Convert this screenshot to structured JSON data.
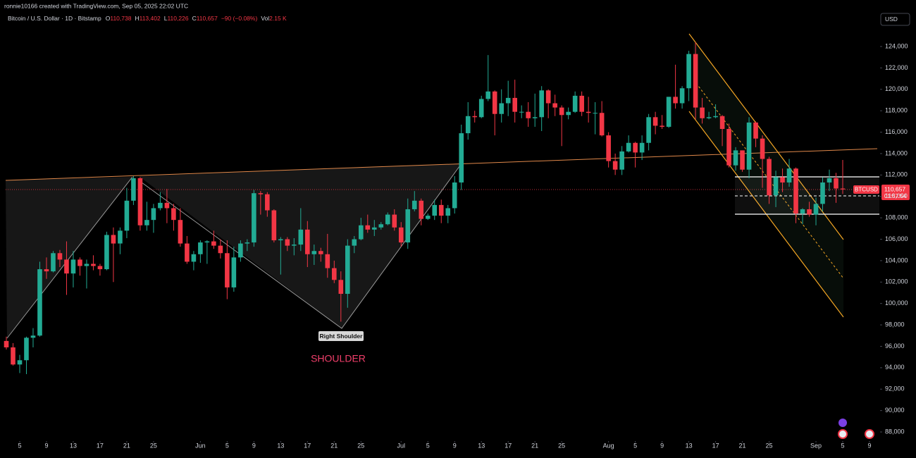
{
  "header": {
    "credit": "ronnie10166 created with TradingView.com, Sep 05, 2025 22:02 UTC",
    "symbol": "Bitcoin / U.S. Dollar · 1D · Bitstamp",
    "ohlc": [
      {
        "key": "O",
        "value": "110,738"
      },
      {
        "key": "H",
        "value": "113,402"
      },
      {
        "key": "L",
        "value": "110,226"
      },
      {
        "key": "C",
        "value": "110,657"
      }
    ],
    "change": "−90 (−0.08%)",
    "vol_key": "Vol",
    "vol": "2.15 K"
  },
  "currency": "USD",
  "price_tag": {
    "symbol": "BTCUSD",
    "price": "110,657",
    "countdown": "01:57:54"
  },
  "chart_data": {
    "type": "candlestick",
    "up_color": "#22ab94",
    "down_color": "#f23645",
    "annotations": [
      "Right Shoulder",
      "SHOULDER"
    ],
    "x": [
      "May 3",
      "May 4",
      "May 5",
      "May 6",
      "May 7",
      "May 8",
      "May 9",
      "May 10",
      "May 11",
      "May 12",
      "May 13",
      "May 14",
      "May 15",
      "May 16",
      "May 17",
      "May 18",
      "May 19",
      "May 20",
      "May 21",
      "May 22",
      "May 23",
      "May 24",
      "May 25",
      "May 26",
      "May 27",
      "May 28",
      "May 29",
      "May 30",
      "May 31",
      "Jun 1",
      "Jun 2",
      "Jun 3",
      "Jun 4",
      "Jun 5",
      "Jun 6",
      "Jun 7",
      "Jun 8",
      "Jun 9",
      "Jun 10",
      "Jun 11",
      "Jun 12",
      "Jun 13",
      "Jun 14",
      "Jun 15",
      "Jun 16",
      "Jun 17",
      "Jun 18",
      "Jun 19",
      "Jun 20",
      "Jun 21",
      "Jun 22",
      "Jun 23",
      "Jun 24",
      "Jun 25",
      "Jun 26",
      "Jun 27",
      "Jun 28",
      "Jun 29",
      "Jun 30",
      "Jul 1",
      "Jul 2",
      "Jul 3",
      "Jul 4",
      "Jul 5",
      "Jul 6",
      "Jul 7",
      "Jul 8",
      "Jul 9",
      "Jul 10",
      "Jul 11",
      "Jul 12",
      "Jul 13",
      "Jul 14",
      "Jul 15",
      "Jul 16",
      "Jul 17",
      "Jul 18",
      "Jul 19",
      "Jul 20",
      "Jul 21",
      "Jul 22",
      "Jul 23",
      "Jul 24",
      "Jul 25",
      "Jul 26",
      "Jul 27",
      "Jul 28",
      "Jul 29",
      "Jul 30",
      "Jul 31",
      "Aug 1",
      "Aug 2",
      "Aug 3",
      "Aug 4",
      "Aug 5",
      "Aug 6",
      "Aug 7",
      "Aug 8",
      "Aug 9",
      "Aug 10",
      "Aug 11",
      "Aug 12",
      "Aug 13",
      "Aug 14",
      "Aug 15",
      "Aug 16",
      "Aug 17",
      "Aug 18",
      "Aug 19",
      "Aug 20",
      "Aug 21",
      "Aug 22",
      "Aug 23",
      "Aug 24",
      "Aug 25",
      "Aug 26",
      "Aug 27",
      "Aug 28",
      "Aug 29",
      "Aug 30",
      "Aug 31",
      "Sep 1",
      "Sep 2",
      "Sep 3",
      "Sep 4",
      "Sep 5",
      "Sep 6",
      "Sep 7",
      "Sep 8",
      "Sep 9"
    ],
    "open": [
      96500,
      95900,
      94300,
      94700,
      96800,
      97000,
      103200,
      103000,
      104700,
      104100,
      102800,
      104100,
      103500,
      103700,
      103500,
      103200,
      106400,
      105600,
      106800,
      109600,
      111700,
      107300,
      107800,
      108900,
      109400,
      108900,
      107800,
      105600,
      103900,
      104600,
      105700,
      105800,
      105400,
      104700,
      101500,
      104300,
      105600,
      105700,
      110300,
      110200,
      108700,
      105900,
      106000,
      105400,
      105500,
      106900,
      104600,
      104900,
      104600,
      103300,
      102200,
      100900,
      105400,
      106000,
      107300,
      106900,
      107100,
      107400,
      108300,
      107100,
      105700,
      108800,
      109600,
      107900,
      108200,
      109200,
      108200,
      108900,
      111300,
      115900,
      117500,
      117400,
      119100,
      119800,
      117700,
      118700,
      119200,
      117900,
      117900,
      117300,
      117400,
      119900,
      118700,
      118300,
      117600,
      117900,
      119400,
      117900,
      117800,
      117800,
      115700,
      113300,
      112500,
      114200,
      115000,
      114100,
      115000,
      117400,
      116600,
      116500,
      119300,
      118700,
      120100,
      123300,
      118300,
      117300,
      117400,
      117500,
      116300,
      112900,
      114300,
      112500,
      116900,
      115400,
      113500,
      110100,
      111800,
      111300,
      112600,
      108400,
      108800,
      108300,
      109300,
      111300,
      111700,
      110738,
      null,
      null,
      null,
      null
    ],
    "high": [
      96900,
      96300,
      95200,
      96900,
      97700,
      103900,
      104300,
      104900,
      105000,
      105800,
      104900,
      104300,
      104100,
      104500,
      103700,
      106700,
      107100,
      107100,
      110800,
      111900,
      111800,
      109500,
      109300,
      110400,
      110700,
      109300,
      108900,
      106300,
      104900,
      105900,
      105900,
      106800,
      106000,
      105900,
      105300,
      105900,
      106000,
      110600,
      110500,
      110400,
      108800,
      106200,
      106200,
      106100,
      108900,
      107700,
      105500,
      105200,
      106500,
      104000,
      103000,
      106000,
      106300,
      108000,
      108300,
      107800,
      107600,
      108500,
      108800,
      107600,
      109800,
      110500,
      109800,
      108400,
      109700,
      109700,
      109200,
      111900,
      116700,
      118800,
      118000,
      119400,
      123200,
      119900,
      120000,
      120800,
      120900,
      118500,
      118800,
      119600,
      120300,
      120000,
      119500,
      118500,
      118300,
      119800,
      119800,
      119300,
      118800,
      118900,
      116000,
      114000,
      114700,
      115700,
      115100,
      115700,
      117700,
      117900,
      117600,
      119300,
      122300,
      120300,
      123600,
      124400,
      119200,
      117900,
      118600,
      117600,
      116800,
      114600,
      114300,
      117400,
      117000,
      115700,
      113700,
      112400,
      112600,
      113500,
      112700,
      108900,
      109500,
      109900,
      111800,
      112500,
      112200,
      113402,
      null,
      null,
      null,
      null
    ],
    "low": [
      95700,
      94200,
      93500,
      93400,
      95900,
      96900,
      102300,
      102900,
      103400,
      100800,
      101500,
      102600,
      101400,
      103100,
      102600,
      103100,
      102000,
      104600,
      106100,
      109200,
      106800,
      106800,
      106600,
      108700,
      107500,
      106800,
      105300,
      103700,
      103100,
      103800,
      103700,
      105100,
      104200,
      100400,
      101100,
      103900,
      104900,
      105300,
      108300,
      108100,
      105700,
      102700,
      104900,
      104500,
      104900,
      103400,
      103600,
      103900,
      102400,
      101900,
      98300,
      99600,
      104700,
      105900,
      106600,
      106300,
      106900,
      107300,
      106800,
      105300,
      105100,
      108600,
      107300,
      107800,
      107800,
      107500,
      107500,
      108400,
      110600,
      115300,
      116900,
      117300,
      118900,
      115700,
      116900,
      117500,
      116900,
      117300,
      116500,
      116500,
      116100,
      117300,
      117500,
      114700,
      117200,
      117800,
      117500,
      116900,
      115800,
      115600,
      112700,
      112000,
      112000,
      114100,
      112700,
      113400,
      114300,
      115800,
      116300,
      116400,
      118200,
      118200,
      118900,
      117200,
      116800,
      117200,
      117300,
      114700,
      112700,
      112400,
      112300,
      111700,
      114600,
      110800,
      109300,
      109000,
      110400,
      110900,
      107500,
      107400,
      108100,
      107300,
      108600,
      110500,
      109400,
      110226,
      null,
      null,
      null,
      null
    ],
    "close": [
      95900,
      94300,
      94700,
      96800,
      97000,
      103200,
      103000,
      104700,
      104100,
      102800,
      104100,
      103500,
      103700,
      103500,
      103200,
      106400,
      105600,
      106800,
      109600,
      111700,
      107300,
      107800,
      108900,
      109400,
      108900,
      107800,
      105600,
      103900,
      104600,
      105700,
      105800,
      105400,
      104700,
      101500,
      104300,
      105600,
      105700,
      110300,
      110200,
      108700,
      105900,
      106000,
      105400,
      105500,
      106900,
      104600,
      104900,
      104600,
      103300,
      102200,
      100900,
      105400,
      106000,
      107300,
      106900,
      107100,
      107400,
      108300,
      107100,
      105700,
      108800,
      109600,
      107900,
      108200,
      109200,
      108200,
      108900,
      111300,
      115900,
      117500,
      117400,
      119100,
      119800,
      117700,
      118700,
      119200,
      117900,
      117900,
      117300,
      117400,
      119900,
      118700,
      118300,
      117600,
      117900,
      119400,
      117900,
      117800,
      117800,
      115700,
      113300,
      112500,
      114200,
      115000,
      114100,
      115000,
      117400,
      116600,
      116500,
      119300,
      118700,
      120100,
      123300,
      118300,
      117300,
      117400,
      117500,
      116300,
      112900,
      114300,
      112500,
      116900,
      115400,
      113500,
      110100,
      111800,
      111300,
      112600,
      108400,
      108800,
      108300,
      109300,
      111300,
      111700,
      110738,
      110657,
      null,
      null,
      null,
      null
    ],
    "ylim": [
      87200,
      126000
    ],
    "yticks": [
      {
        "value": 88000,
        "label": "88,000"
      },
      {
        "value": 90000,
        "label": "90,000"
      },
      {
        "value": 92000,
        "label": "92,000"
      },
      {
        "value": 94000,
        "label": "94,000"
      },
      {
        "value": 96000,
        "label": "96,000"
      },
      {
        "value": 98000,
        "label": "98,000"
      },
      {
        "value": 100000,
        "label": "100,000"
      },
      {
        "value": 102000,
        "label": "102,000"
      },
      {
        "value": 104000,
        "label": "104,000"
      },
      {
        "value": 106000,
        "label": "106,000"
      },
      {
        "value": 108000,
        "label": "108,000"
      },
      {
        "value": 110000,
        "label": "110,000"
      },
      {
        "value": 112000,
        "label": "112,000"
      },
      {
        "value": 114000,
        "label": "114,000"
      },
      {
        "value": 116000,
        "label": "116,000"
      },
      {
        "value": 118000,
        "label": "118,000"
      },
      {
        "value": 120000,
        "label": "120,000"
      },
      {
        "value": 122000,
        "label": "122,000"
      },
      {
        "value": 124000,
        "label": "124,000"
      }
    ],
    "xticks": [
      {
        "value": "May 5",
        "label": "5"
      },
      {
        "value": "May 9",
        "label": "9"
      },
      {
        "value": "May 13",
        "label": "13"
      },
      {
        "value": "May 17",
        "label": "17"
      },
      {
        "value": "May 21",
        "label": "21"
      },
      {
        "value": "May 25",
        "label": "25"
      },
      {
        "value": "Jun 1",
        "label": "Jun"
      },
      {
        "value": "Jun 5",
        "label": "5"
      },
      {
        "value": "Jun 9",
        "label": "9"
      },
      {
        "value": "Jun 13",
        "label": "13"
      },
      {
        "value": "Jun 17",
        "label": "17"
      },
      {
        "value": "Jun 21",
        "label": "21"
      },
      {
        "value": "Jun 25",
        "label": "25"
      },
      {
        "value": "Jul 1",
        "label": "Jul"
      },
      {
        "value": "Jul 5",
        "label": "5"
      },
      {
        "value": "Jul 9",
        "label": "9"
      },
      {
        "value": "Jul 13",
        "label": "13"
      },
      {
        "value": "Jul 17",
        "label": "17"
      },
      {
        "value": "Jul 21",
        "label": "21"
      },
      {
        "value": "Jul 25",
        "label": "25"
      },
      {
        "value": "Aug 1",
        "label": "Aug"
      },
      {
        "value": "Aug 5",
        "label": "5"
      },
      {
        "value": "Aug 9",
        "label": "9"
      },
      {
        "value": "Aug 13",
        "label": "13"
      },
      {
        "value": "Aug 17",
        "label": "17"
      },
      {
        "value": "Aug 21",
        "label": "21"
      },
      {
        "value": "Aug 25",
        "label": "25"
      },
      {
        "value": "Sep 1",
        "label": "Sep"
      },
      {
        "value": "Sep 5",
        "label": "5"
      },
      {
        "value": "Sep 9",
        "label": "9"
      }
    ],
    "grid": false
  }
}
